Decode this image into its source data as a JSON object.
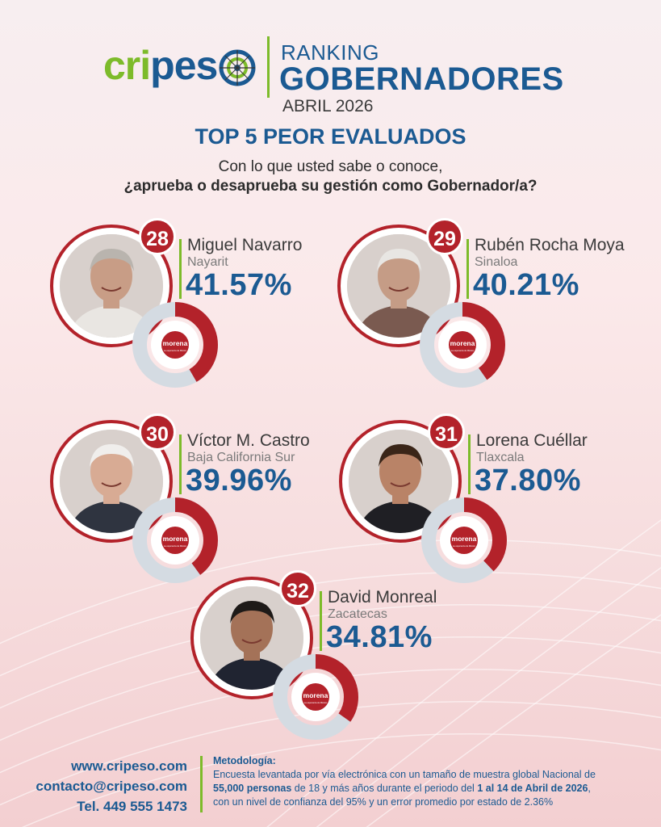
{
  "brand": {
    "logo_part1": "cri",
    "logo_part2": "pes",
    "green": "#7dbb2a",
    "blue": "#1b5a92",
    "red": "#b3222a"
  },
  "header": {
    "line1": "RANKING",
    "line2": "GOBERNADORES",
    "line3": "ABRIL 2026"
  },
  "subtitle": "TOP 5 PEOR EVALUADOS",
  "question": {
    "line1": "Con lo que usted sabe o conoce,",
    "line2": "¿aprueba o desaprueba su gestión como Gobernador/a?"
  },
  "governors": [
    {
      "rank": "28",
      "name": "Miguel Navarro",
      "state": "Nayarit",
      "percent": "41.57%",
      "approval_fraction": 0.4157,
      "party": "morena",
      "party_tagline": "La esperanza de México"
    },
    {
      "rank": "29",
      "name": "Rubén Rocha Moya",
      "state": "Sinaloa",
      "percent": "40.21%",
      "approval_fraction": 0.4021,
      "party": "morena",
      "party_tagline": "La esperanza de México"
    },
    {
      "rank": "30",
      "name": "Víctor M. Castro",
      "state": "Baja California Sur",
      "percent": "39.96%",
      "approval_fraction": 0.3996,
      "party": "morena",
      "party_tagline": "La esperanza de México"
    },
    {
      "rank": "31",
      "name": "Lorena Cuéllar",
      "state": "Tlaxcala",
      "percent": "37.80%",
      "approval_fraction": 0.378,
      "party": "morena",
      "party_tagline": "La esperanza de México"
    },
    {
      "rank": "32",
      "name": "David Monreal",
      "state": "Zacatecas",
      "percent": "34.81%",
      "approval_fraction": 0.3481,
      "party": "morena",
      "party_tagline": "La esperanza de México"
    }
  ],
  "footer": {
    "website": "www.cripeso.com",
    "email": "contacto@cripeso.com",
    "phone": "Tel. 449 555 1473",
    "method_title": "Metodología:",
    "method_p1": "Encuesta levantada por vía electrónica con un tamaño de muestra global Nacional de",
    "method_b1": "55,000 personas",
    "method_p2": " de 18 y más años durante el periodo del ",
    "method_b2": "1 al 14 de Abril de 2026",
    "method_p3": ",",
    "method_p4": "con un nivel de confianza del 95% y un error promedio por estado de 2.36%"
  }
}
